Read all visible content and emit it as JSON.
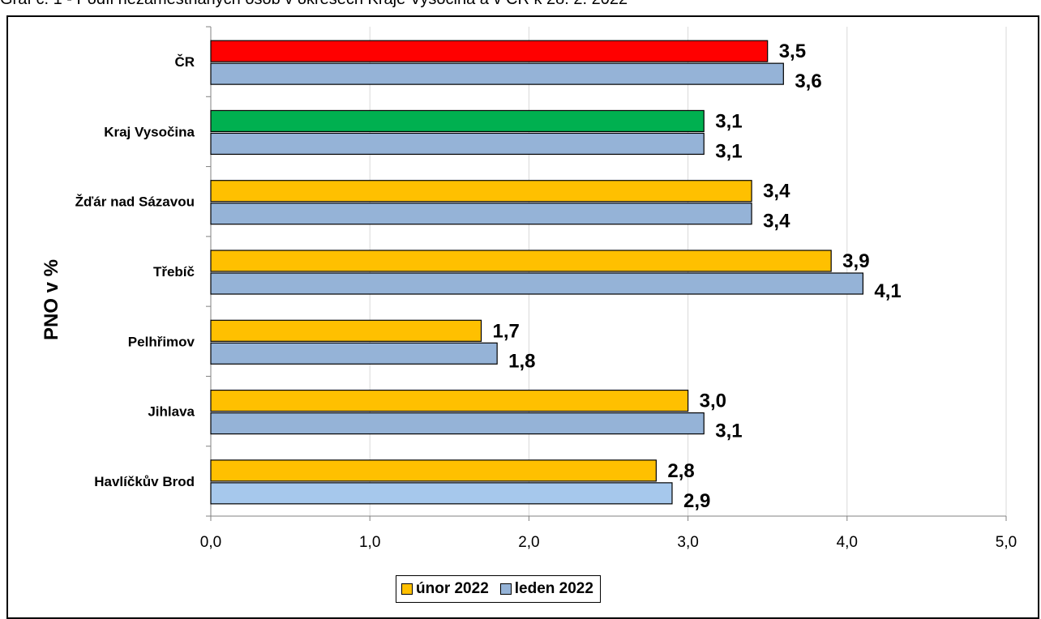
{
  "title": "Graf č. 1 - Podíl nezaměstnaných osob v okresech Kraje Vysočina a v ČR k 28. 2. 2022",
  "chart_data": {
    "type": "bar",
    "orientation": "horizontal",
    "title": "Graf č. 1 - Podíl nezaměstnaných osob v okresech Kraje Vysočina a v ČR k 28. 2. 2022",
    "ylabel": "PNO v %",
    "xlabel": "",
    "xlim": [
      0,
      5
    ],
    "xticks": [
      "0,0",
      "1,0",
      "2,0",
      "3,0",
      "4,0",
      "5,0"
    ],
    "grid": "vertical",
    "legend_position": "bottom",
    "categories": [
      "ČR",
      "Kraj Vysočina",
      "Žďár nad Sázavou",
      "Třebíč",
      "Pelhřimov",
      "Jihlava",
      "Havlíčkův Brod"
    ],
    "series": [
      {
        "name": "únor 2022",
        "color": "#FFC000",
        "values": [
          3.5,
          3.1,
          3.4,
          3.9,
          1.7,
          3.0,
          2.8
        ],
        "labels": [
          "3,5",
          "3,1",
          "3,4",
          "3,9",
          "1,7",
          "3,0",
          "2,8"
        ],
        "colors": [
          "#FF0000",
          "#00B050",
          "#FFC000",
          "#FFC000",
          "#FFC000",
          "#FFC000",
          "#FFC000"
        ]
      },
      {
        "name": "leden 2022",
        "color": "#95B3D7",
        "values": [
          3.6,
          3.1,
          3.4,
          4.1,
          1.8,
          3.1,
          2.9
        ],
        "labels": [
          "3,6",
          "3,1",
          "3,4",
          "4,1",
          "1,8",
          "3,1",
          "2,9"
        ],
        "colors": [
          "#95B3D7",
          "#95B3D7",
          "#95B3D7",
          "#95B3D7",
          "#95B3D7",
          "#95B3D7",
          "#A6C8EC"
        ]
      }
    ]
  }
}
